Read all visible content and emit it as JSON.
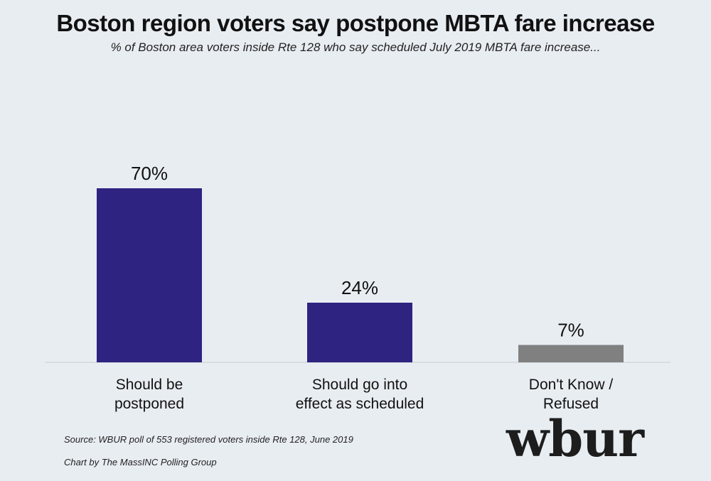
{
  "chart_data": {
    "type": "bar",
    "title": "Boston region voters say postpone MBTA fare increase",
    "subtitle": "% of Boston area voters inside Rte 128 who say scheduled July 2019 MBTA fare increase...",
    "categories": [
      [
        "Should be",
        "postponed"
      ],
      [
        "Should go into",
        "effect as scheduled"
      ],
      [
        "Don't Know /",
        "Refused"
      ]
    ],
    "values": [
      70,
      24,
      7
    ],
    "data_labels": [
      "70%",
      "24%",
      "7%"
    ],
    "colors": [
      "#2e2380",
      "#2e2380",
      "#808080"
    ],
    "ylim": [
      0,
      100
    ],
    "grid": false,
    "legend": "none"
  },
  "footer": {
    "source": "Source: WBUR poll of 553 registered voters inside Rte 128, June 2019",
    "credit": "Chart by The MassINC Polling Group"
  },
  "logo": {
    "text": "wbur"
  }
}
